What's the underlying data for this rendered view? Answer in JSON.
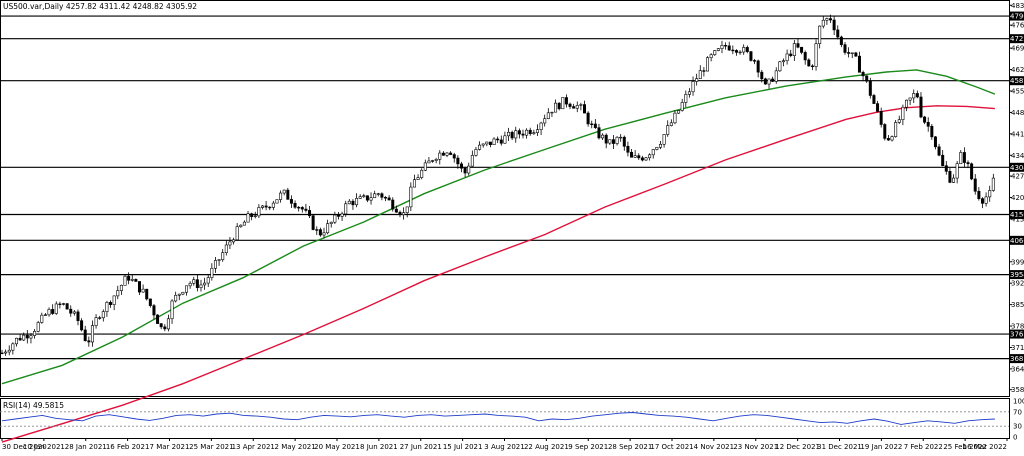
{
  "chart_data": {
    "type": "candlestick",
    "title": "US500.var,Daily  4257.82 4311.42 4248.82 4305.92",
    "ohlc": {
      "open": 4257.82,
      "high": 4311.42,
      "low": 4248.82,
      "close": 4305.92
    },
    "y_ticks": [
      4831.05,
      4766.35,
      4691.65,
      4621.95,
      4552.25,
      4482.55,
      4412.85,
      4343.15,
      4275.5,
      4205.8,
      4136.1,
      3996.7,
      3927.0,
      3857.3,
      3787.6,
      3717.9,
      3648.2,
      3580.55
    ],
    "ylim": [
      3560,
      4845
    ],
    "x_ticks": [
      "30 Dec 2020",
      "10 Jan 2021",
      "28 Jan 2021",
      "16 Feb 2021",
      "7 Mar 2021",
      "25 Mar 2021",
      "13 Apr 2021",
      "2 May 2021",
      "20 May 2021",
      "8 Jun 2021",
      "27 Jun 2021",
      "15 Jul 2021",
      "3 Aug 2021",
      "22 Aug 2021",
      "9 Sep 2021",
      "28 Sep 2021",
      "17 Oct 2021",
      "4 Nov 2021",
      "23 Nov 2021",
      "12 Dec 2021",
      "31 Dec 2021",
      "19 Jan 2022",
      "7 Feb 2022",
      "25 Feb 2022",
      "16 Mar 2022"
    ],
    "horizontal_levels": [
      {
        "label": "4796.00",
        "value": 4796.0
      },
      {
        "label": "4722.41",
        "value": 4722.41
      },
      {
        "label": "4585.74",
        "value": 4585.74
      },
      {
        "label": "4304.00",
        "value": 4304.0
      },
      {
        "label": "4150.51",
        "value": 4150.51
      },
      {
        "label": "4066.40",
        "value": 4066.4
      },
      {
        "label": "3954.97",
        "value": 3954.97
      },
      {
        "label": "3761.53",
        "value": 3761.53
      },
      {
        "label": "3681.63",
        "value": 3681.63
      }
    ],
    "moving_averages": [
      {
        "color": "#1a8a1a",
        "points": [
          [
            0,
            3600
          ],
          [
            60,
            3660
          ],
          [
            120,
            3752
          ],
          [
            180,
            3862
          ],
          [
            240,
            3945
          ],
          [
            300,
            4048
          ],
          [
            360,
            4126
          ],
          [
            420,
            4218
          ],
          [
            480,
            4295
          ],
          [
            540,
            4362
          ],
          [
            600,
            4428
          ],
          [
            660,
            4480
          ],
          [
            720,
            4530
          ],
          [
            780,
            4568
          ],
          [
            840,
            4598
          ],
          [
            880,
            4614
          ],
          [
            910,
            4621
          ],
          [
            940,
            4600
          ],
          [
            970,
            4565
          ],
          [
            988,
            4542
          ]
        ]
      },
      {
        "color": "#e0103a",
        "points": [
          [
            0,
            3410
          ],
          [
            60,
            3470
          ],
          [
            120,
            3530
          ],
          [
            180,
            3600
          ],
          [
            240,
            3680
          ],
          [
            300,
            3760
          ],
          [
            360,
            3845
          ],
          [
            420,
            3935
          ],
          [
            480,
            4012
          ],
          [
            540,
            4085
          ],
          [
            600,
            4175
          ],
          [
            660,
            4250
          ],
          [
            720,
            4328
          ],
          [
            780,
            4395
          ],
          [
            840,
            4460
          ],
          [
            870,
            4483
          ],
          [
            900,
            4498
          ],
          [
            930,
            4504
          ],
          [
            960,
            4502
          ],
          [
            988,
            4495
          ]
        ]
      }
    ],
    "price_path": [
      [
        0,
        3700
      ],
      [
        15,
        3745
      ],
      [
        30,
        3770
      ],
      [
        45,
        3830
      ],
      [
        60,
        3860
      ],
      [
        75,
        3810
      ],
      [
        85,
        3730
      ],
      [
        95,
        3820
      ],
      [
        110,
        3880
      ],
      [
        125,
        3950
      ],
      [
        140,
        3900
      ],
      [
        150,
        3840
      ],
      [
        160,
        3770
      ],
      [
        170,
        3870
      ],
      [
        185,
        3930
      ],
      [
        200,
        3920
      ],
      [
        215,
        4000
      ],
      [
        230,
        4080
      ],
      [
        245,
        4140
      ],
      [
        260,
        4170
      ],
      [
        280,
        4220
      ],
      [
        300,
        4165
      ],
      [
        315,
        4085
      ],
      [
        330,
        4130
      ],
      [
        345,
        4190
      ],
      [
        360,
        4200
      ],
      [
        375,
        4220
      ],
      [
        390,
        4180
      ],
      [
        400,
        4150
      ],
      [
        410,
        4260
      ],
      [
        430,
        4340
      ],
      [
        445,
        4365
      ],
      [
        460,
        4280
      ],
      [
        470,
        4360
      ],
      [
        490,
        4390
      ],
      [
        510,
        4410
      ],
      [
        530,
        4430
      ],
      [
        545,
        4490
      ],
      [
        560,
        4520
      ],
      [
        575,
        4500
      ],
      [
        590,
        4420
      ],
      [
        605,
        4380
      ],
      [
        615,
        4400
      ],
      [
        625,
        4330
      ],
      [
        640,
        4340
      ],
      [
        655,
        4390
      ],
      [
        670,
        4470
      ],
      [
        690,
        4590
      ],
      [
        705,
        4660
      ],
      [
        720,
        4700
      ],
      [
        735,
        4690
      ],
      [
        750,
        4650
      ],
      [
        760,
        4560
      ],
      [
        775,
        4640
      ],
      [
        790,
        4700
      ],
      [
        805,
        4620
      ],
      [
        815,
        4780
      ],
      [
        825,
        4790
      ],
      [
        835,
        4700
      ],
      [
        850,
        4650
      ],
      [
        860,
        4580
      ],
      [
        870,
        4490
      ],
      [
        880,
        4390
      ],
      [
        890,
        4440
      ],
      [
        900,
        4510
      ],
      [
        910,
        4550
      ],
      [
        915,
        4470
      ],
      [
        925,
        4420
      ],
      [
        935,
        4310
      ],
      [
        945,
        4260
      ],
      [
        955,
        4350
      ],
      [
        962,
        4300
      ],
      [
        968,
        4230
      ],
      [
        975,
        4200
      ],
      [
        985,
        4220
      ],
      [
        988,
        4305
      ]
    ],
    "rsi": {
      "label": "RSI(14) 49.5815",
      "levels": [
        100,
        70,
        30,
        0
      ],
      "values": [
        45,
        50,
        55,
        60,
        52,
        48,
        45,
        58,
        62,
        56,
        50,
        46,
        52,
        60,
        62,
        58,
        64,
        66,
        60,
        58,
        55,
        50,
        48,
        55,
        60,
        58,
        56,
        60,
        62,
        58,
        55,
        60,
        62,
        58,
        60,
        62,
        64,
        60,
        58,
        55,
        45,
        50,
        48,
        52,
        58,
        62,
        66,
        68,
        64,
        60,
        58,
        55,
        50,
        45,
        52,
        58,
        62,
        60,
        55,
        50,
        45,
        40,
        42,
        38,
        45,
        50,
        44,
        35,
        40,
        45,
        42,
        38,
        45,
        48,
        50
      ]
    }
  }
}
